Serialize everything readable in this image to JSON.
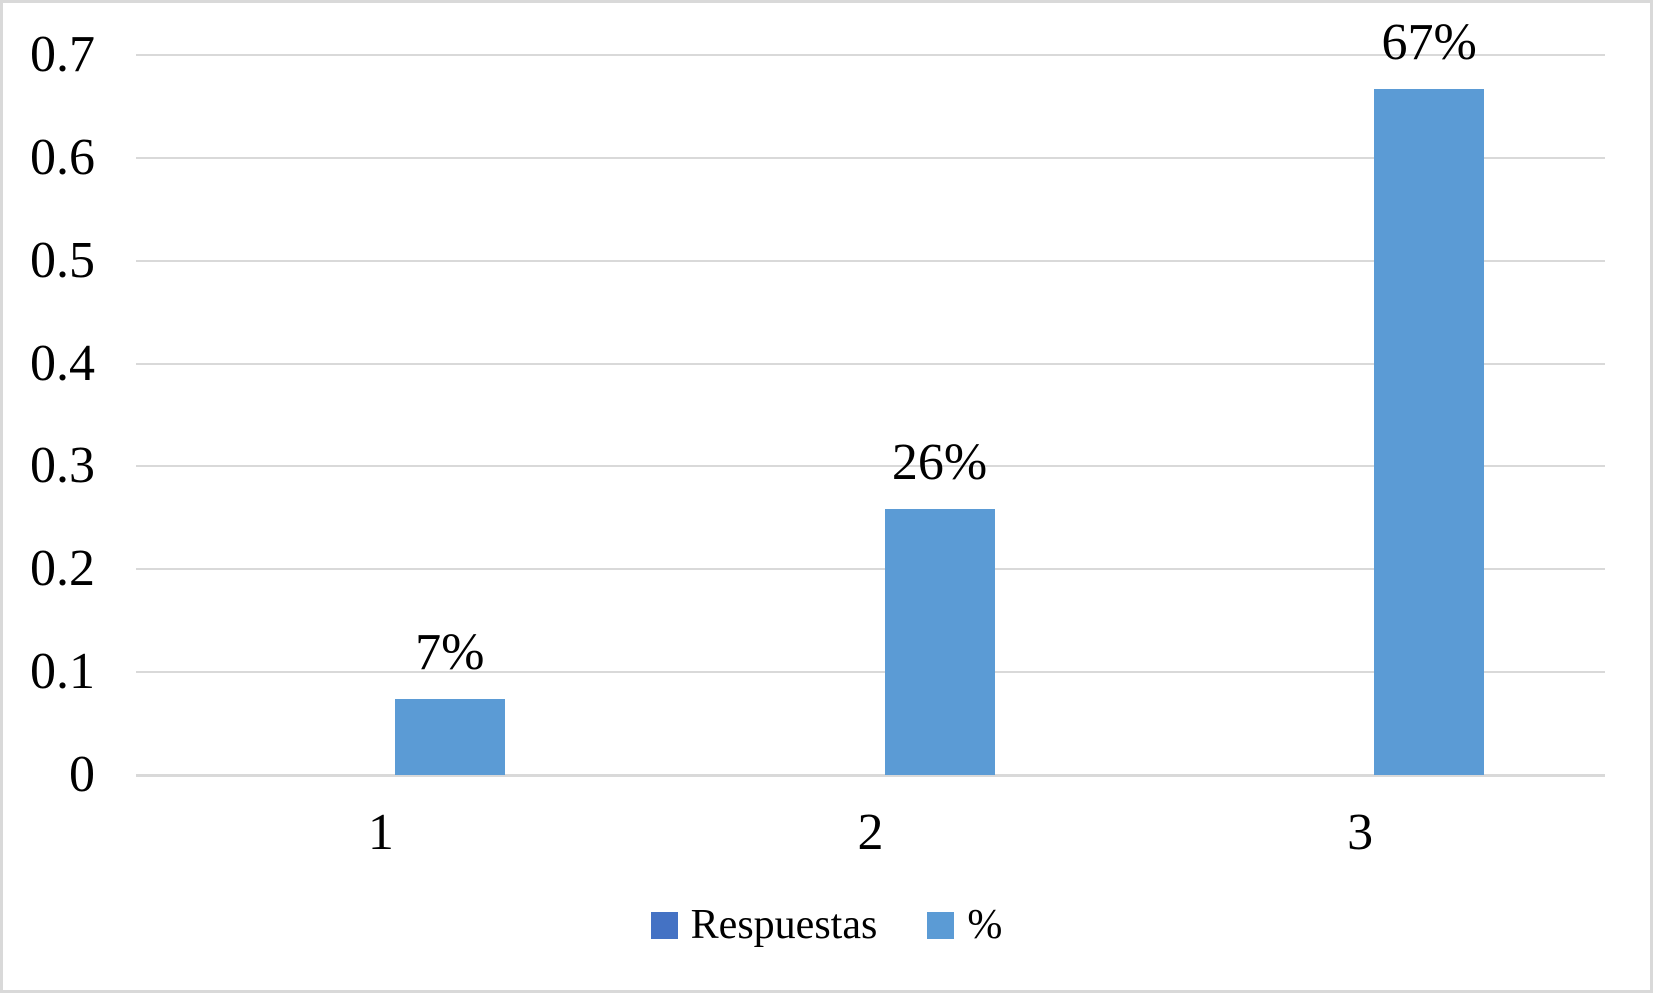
{
  "chart_data": {
    "type": "bar",
    "categories": [
      "1",
      "2",
      "3"
    ],
    "series": [
      {
        "name": "Respuestas",
        "color": "#4472C4",
        "values": [
          null,
          null,
          null
        ]
      },
      {
        "name": "%",
        "color": "#5B9BD5",
        "values": [
          0.074,
          0.259,
          0.667
        ],
        "data_labels": [
          "7%",
          "26%",
          "67%"
        ]
      }
    ],
    "yticks": [
      "0",
      "0.1",
      "0.2",
      "0.3",
      "0.4",
      "0.5",
      "0.6",
      "0.7"
    ],
    "ylim": [
      0,
      0.7
    ],
    "grid": true,
    "legend_position": "bottom"
  },
  "legend": {
    "items": [
      {
        "label": "Respuestas",
        "color": "#4472C4"
      },
      {
        "label": "%",
        "color": "#5B9BD5"
      }
    ]
  },
  "colors": {
    "background": "#FFFFFF",
    "border": "#D9D9D9",
    "gridline": "#D9D9D9",
    "axis_line": "#D9D9D9",
    "text": "#000000"
  }
}
